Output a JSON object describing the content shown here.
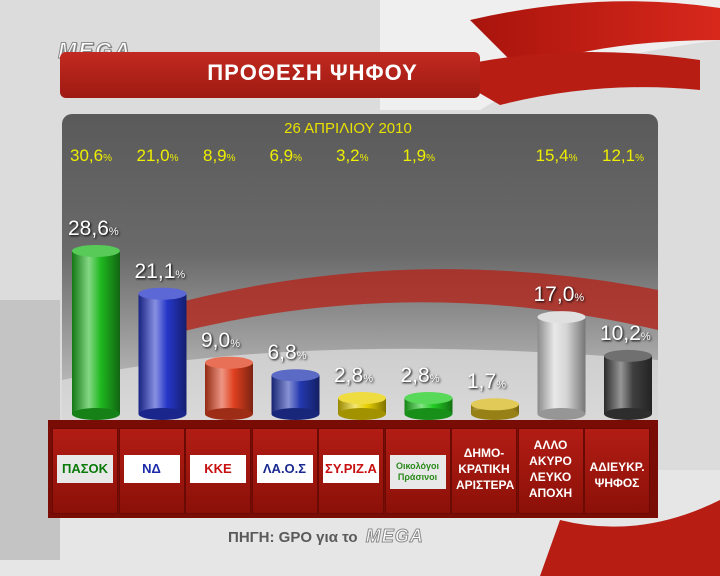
{
  "header": {
    "brand": "MEGA",
    "title": "ΠΡΟΘΕΣΗ ΨΗΦΟΥ"
  },
  "footer": {
    "source_prefix": "ΠΗΓΗ: GPO για το",
    "source_brand": "MEGA"
  },
  "chart_data": {
    "type": "bar",
    "title": "ΠΡΟΘΕΣΗ ΨΗΦΟΥ",
    "unit": "%",
    "comparison_label": "26 ΑΠΡΙΛΙΟΥ 2010",
    "categories": [
      "ΠΑΣΟΚ",
      "ΝΔ",
      "ΚΚΕ",
      "ΛΑ.Ο.Σ",
      "ΣΥ.ΡΙΖ.Α",
      "Οικολόγοι Πράσινοι",
      "ΔΗΜΟΚΡΑΤΙΚΗ ΑΡΙΣΤΕΡΑ",
      "ΑΛΛΟ ΑΚΥΡΟ ΛΕΥΚΟ ΑΠΟΧΗ",
      "ΑΔΙΕΥΚΡ. ΨΗΦΟΣ"
    ],
    "tile_text": [
      "ΠΑΣΟΚ",
      "ΝΔ",
      "ΚΚΕ",
      "ΛΑ.Ο.Σ",
      "ΣΥ.ΡΙΖ.Α",
      "Οικολόγοι Πράσινοι",
      "ΔΗΜΟ-\nΚΡΑΤΙΚΗ\nΑΡΙΣΤΕΡΑ",
      "ΑΛΛΟ\nΑΚΥΡΟ\nΛΕΥΚΟ\nΑΠΟΧΗ",
      "ΑΔΙΕΥΚΡ.\nΨΗΦΟΣ"
    ],
    "values": [
      28.6,
      21.1,
      9.0,
      6.8,
      2.8,
      2.8,
      1.7,
      17.0,
      10.2
    ],
    "value_labels": [
      "28,6",
      "21,1",
      "9,0",
      "6,8",
      "2,8",
      "2,8",
      "1,7",
      "17,0",
      "10,2"
    ],
    "previous_values": [
      30.6,
      21.0,
      8.9,
      6.9,
      3.2,
      1.9,
      null,
      15.4,
      12.1
    ],
    "previous_labels": [
      "30,6",
      "21,0",
      "8,9",
      "6,9",
      "3,2",
      "1,9",
      "",
      "15,4",
      "12,1"
    ],
    "colors": [
      "#1fb81f",
      "#2536c8",
      "#e0401f",
      "#2438b0",
      "#e8d000",
      "#22cc22",
      "#d8b820",
      "#d6d6d6",
      "#404040"
    ],
    "legend": "none",
    "grid": false
  }
}
